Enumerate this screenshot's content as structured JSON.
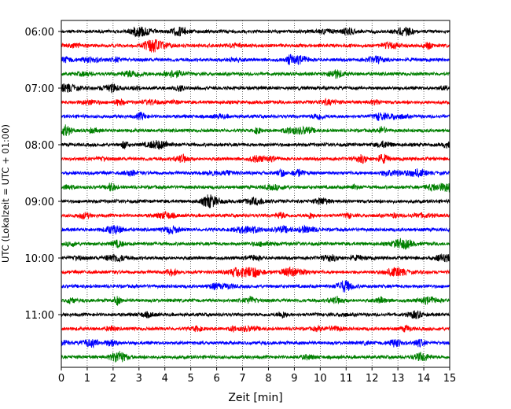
{
  "chart_data": {
    "type": "line",
    "subtype": "helicorder-seismogram",
    "xlabel": "Zeit  [min]",
    "ylabel": "UTC (Lokalzeit = UTC + 01:00)",
    "xlim": [
      0,
      15
    ],
    "x_ticks": [
      "0",
      "1",
      "2",
      "3",
      "4",
      "5",
      "6",
      "7",
      "8",
      "9",
      "10",
      "11",
      "12",
      "13",
      "14",
      "15"
    ],
    "y_tick_labels": [
      "06:00",
      "07:00",
      "08:00",
      "09:00",
      "10:00",
      "11:00"
    ],
    "grid": "vertical-dotted",
    "trace_interval_minutes": 15,
    "trace_colors": [
      "#000000",
      "#ff0000",
      "#0000ff",
      "#008000"
    ],
    "traces": [
      {
        "start": "06:00",
        "color": "#000000"
      },
      {
        "start": "06:15",
        "color": "#ff0000"
      },
      {
        "start": "06:30",
        "color": "#0000ff"
      },
      {
        "start": "06:45",
        "color": "#008000"
      },
      {
        "start": "07:00",
        "color": "#000000"
      },
      {
        "start": "07:15",
        "color": "#ff0000"
      },
      {
        "start": "07:30",
        "color": "#0000ff"
      },
      {
        "start": "07:45",
        "color": "#008000"
      },
      {
        "start": "08:00",
        "color": "#000000"
      },
      {
        "start": "08:15",
        "color": "#ff0000"
      },
      {
        "start": "08:30",
        "color": "#0000ff"
      },
      {
        "start": "08:45",
        "color": "#008000"
      },
      {
        "start": "09:00",
        "color": "#000000"
      },
      {
        "start": "09:15",
        "color": "#ff0000"
      },
      {
        "start": "09:30",
        "color": "#0000ff"
      },
      {
        "start": "09:45",
        "color": "#008000"
      },
      {
        "start": "10:00",
        "color": "#000000"
      },
      {
        "start": "10:15",
        "color": "#ff0000"
      },
      {
        "start": "10:30",
        "color": "#0000ff"
      },
      {
        "start": "10:45",
        "color": "#008000"
      },
      {
        "start": "11:00",
        "color": "#000000"
      },
      {
        "start": "11:15",
        "color": "#ff0000"
      },
      {
        "start": "11:30",
        "color": "#0000ff"
      },
      {
        "start": "11:45",
        "color": "#008000"
      }
    ]
  }
}
